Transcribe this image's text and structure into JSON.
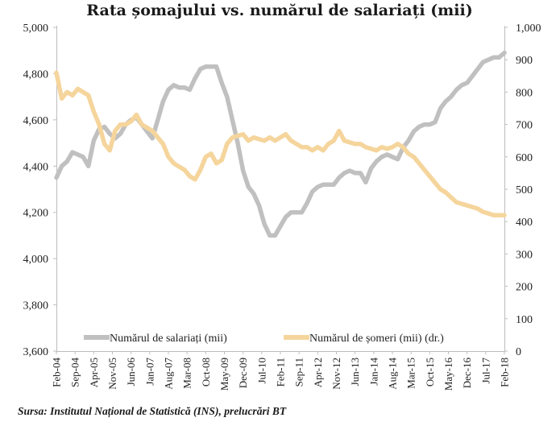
{
  "chart_data": {
    "type": "line",
    "title": "Rata șomajului vs. numărul de salariați (mii)",
    "source": "Sursa: Institutul Național de Statistică (INS), prelucrări BT",
    "x_tick_labels": [
      "Feb-04",
      "Sep-04",
      "Apr-05",
      "Nov-05",
      "Jun-06",
      "Jan-07",
      "Aug-07",
      "Mar-08",
      "Oct-08",
      "May-09",
      "Dec-09",
      "Jul-10",
      "Feb-11",
      "Sep-11",
      "Apr-12",
      "Nov-12",
      "Jun-13",
      "Jan-14",
      "Aug-14",
      "Mar-15",
      "Oct-15",
      "May-16",
      "Dec-16",
      "Jul-17",
      "Feb-18"
    ],
    "x_range_months": [
      0,
      168
    ],
    "y_left": {
      "ylim": [
        3600,
        5000
      ],
      "ticks": [
        "3,600",
        "3,800",
        "4,000",
        "4,200",
        "4,400",
        "4,600",
        "4,800",
        "5,000"
      ]
    },
    "y_right": {
      "ylim": [
        0,
        1000
      ],
      "ticks": [
        "0",
        "100",
        "200",
        "300",
        "400",
        "500",
        "600",
        "700",
        "800",
        "900",
        "1,000"
      ]
    },
    "legend_placement": "bottom-inside",
    "grid": false,
    "series": [
      {
        "name": "Numărul de salariați (mii)",
        "axis": "left",
        "color": "#c0c0c0",
        "x": [
          0,
          2,
          4,
          6,
          8,
          10,
          12,
          14,
          16,
          18,
          20,
          22,
          24,
          26,
          28,
          30,
          32,
          34,
          36,
          38,
          40,
          42,
          44,
          46,
          48,
          50,
          52,
          54,
          56,
          58,
          60,
          62,
          64,
          66,
          68,
          70,
          72,
          74,
          76,
          78,
          80,
          82,
          84,
          86,
          88,
          90,
          92,
          94,
          96,
          98,
          100,
          102,
          104,
          106,
          108,
          110,
          112,
          114,
          116,
          118,
          120,
          122,
          124,
          126,
          128,
          130,
          132,
          134,
          136,
          138,
          140,
          142,
          144,
          146,
          148,
          150,
          152,
          154,
          156,
          158,
          160,
          162,
          164,
          166,
          168
        ],
        "values": [
          4350,
          4400,
          4420,
          4460,
          4450,
          4440,
          4400,
          4510,
          4560,
          4570,
          4540,
          4520,
          4540,
          4580,
          4600,
          4610,
          4580,
          4550,
          4520,
          4600,
          4680,
          4730,
          4750,
          4740,
          4740,
          4730,
          4780,
          4820,
          4830,
          4830,
          4830,
          4760,
          4700,
          4600,
          4500,
          4380,
          4310,
          4280,
          4230,
          4150,
          4100,
          4100,
          4140,
          4180,
          4200,
          4200,
          4200,
          4240,
          4290,
          4310,
          4320,
          4320,
          4320,
          4350,
          4370,
          4380,
          4370,
          4370,
          4330,
          4390,
          4420,
          4440,
          4450,
          4440,
          4430,
          4480,
          4510,
          4550,
          4570,
          4580,
          4580,
          4590,
          4650,
          4680,
          4700,
          4730,
          4750,
          4760,
          4790,
          4820,
          4850,
          4860,
          4870,
          4870,
          4890
        ]
      },
      {
        "name": "Numărul de șomeri (mii) (dr.)",
        "axis": "right",
        "color": "#f5d59c",
        "x": [
          0,
          2,
          4,
          6,
          8,
          10,
          12,
          14,
          16,
          18,
          20,
          22,
          24,
          26,
          28,
          30,
          32,
          34,
          36,
          38,
          40,
          42,
          44,
          46,
          48,
          50,
          52,
          54,
          56,
          58,
          60,
          62,
          64,
          66,
          68,
          70,
          72,
          74,
          76,
          78,
          80,
          82,
          84,
          86,
          88,
          90,
          92,
          94,
          96,
          98,
          100,
          102,
          104,
          106,
          108,
          110,
          112,
          114,
          116,
          118,
          120,
          122,
          124,
          126,
          128,
          130,
          132,
          134,
          136,
          138,
          140,
          142,
          144,
          146,
          148,
          150,
          152,
          154,
          156,
          158,
          160,
          162,
          164,
          166,
          168
        ],
        "values": [
          860,
          780,
          800,
          790,
          810,
          800,
          790,
          740,
          700,
          640,
          620,
          680,
          700,
          700,
          710,
          730,
          700,
          690,
          680,
          660,
          640,
          600,
          580,
          570,
          560,
          540,
          530,
          560,
          600,
          610,
          580,
          590,
          640,
          660,
          665,
          670,
          650,
          660,
          655,
          650,
          660,
          650,
          660,
          670,
          650,
          640,
          630,
          630,
          620,
          630,
          620,
          640,
          650,
          680,
          650,
          645,
          640,
          640,
          630,
          625,
          620,
          630,
          625,
          630,
          640,
          630,
          610,
          600,
          580,
          560,
          540,
          520,
          500,
          490,
          475,
          460,
          455,
          450,
          445,
          440,
          430,
          425,
          420,
          420,
          420
        ]
      }
    ]
  }
}
